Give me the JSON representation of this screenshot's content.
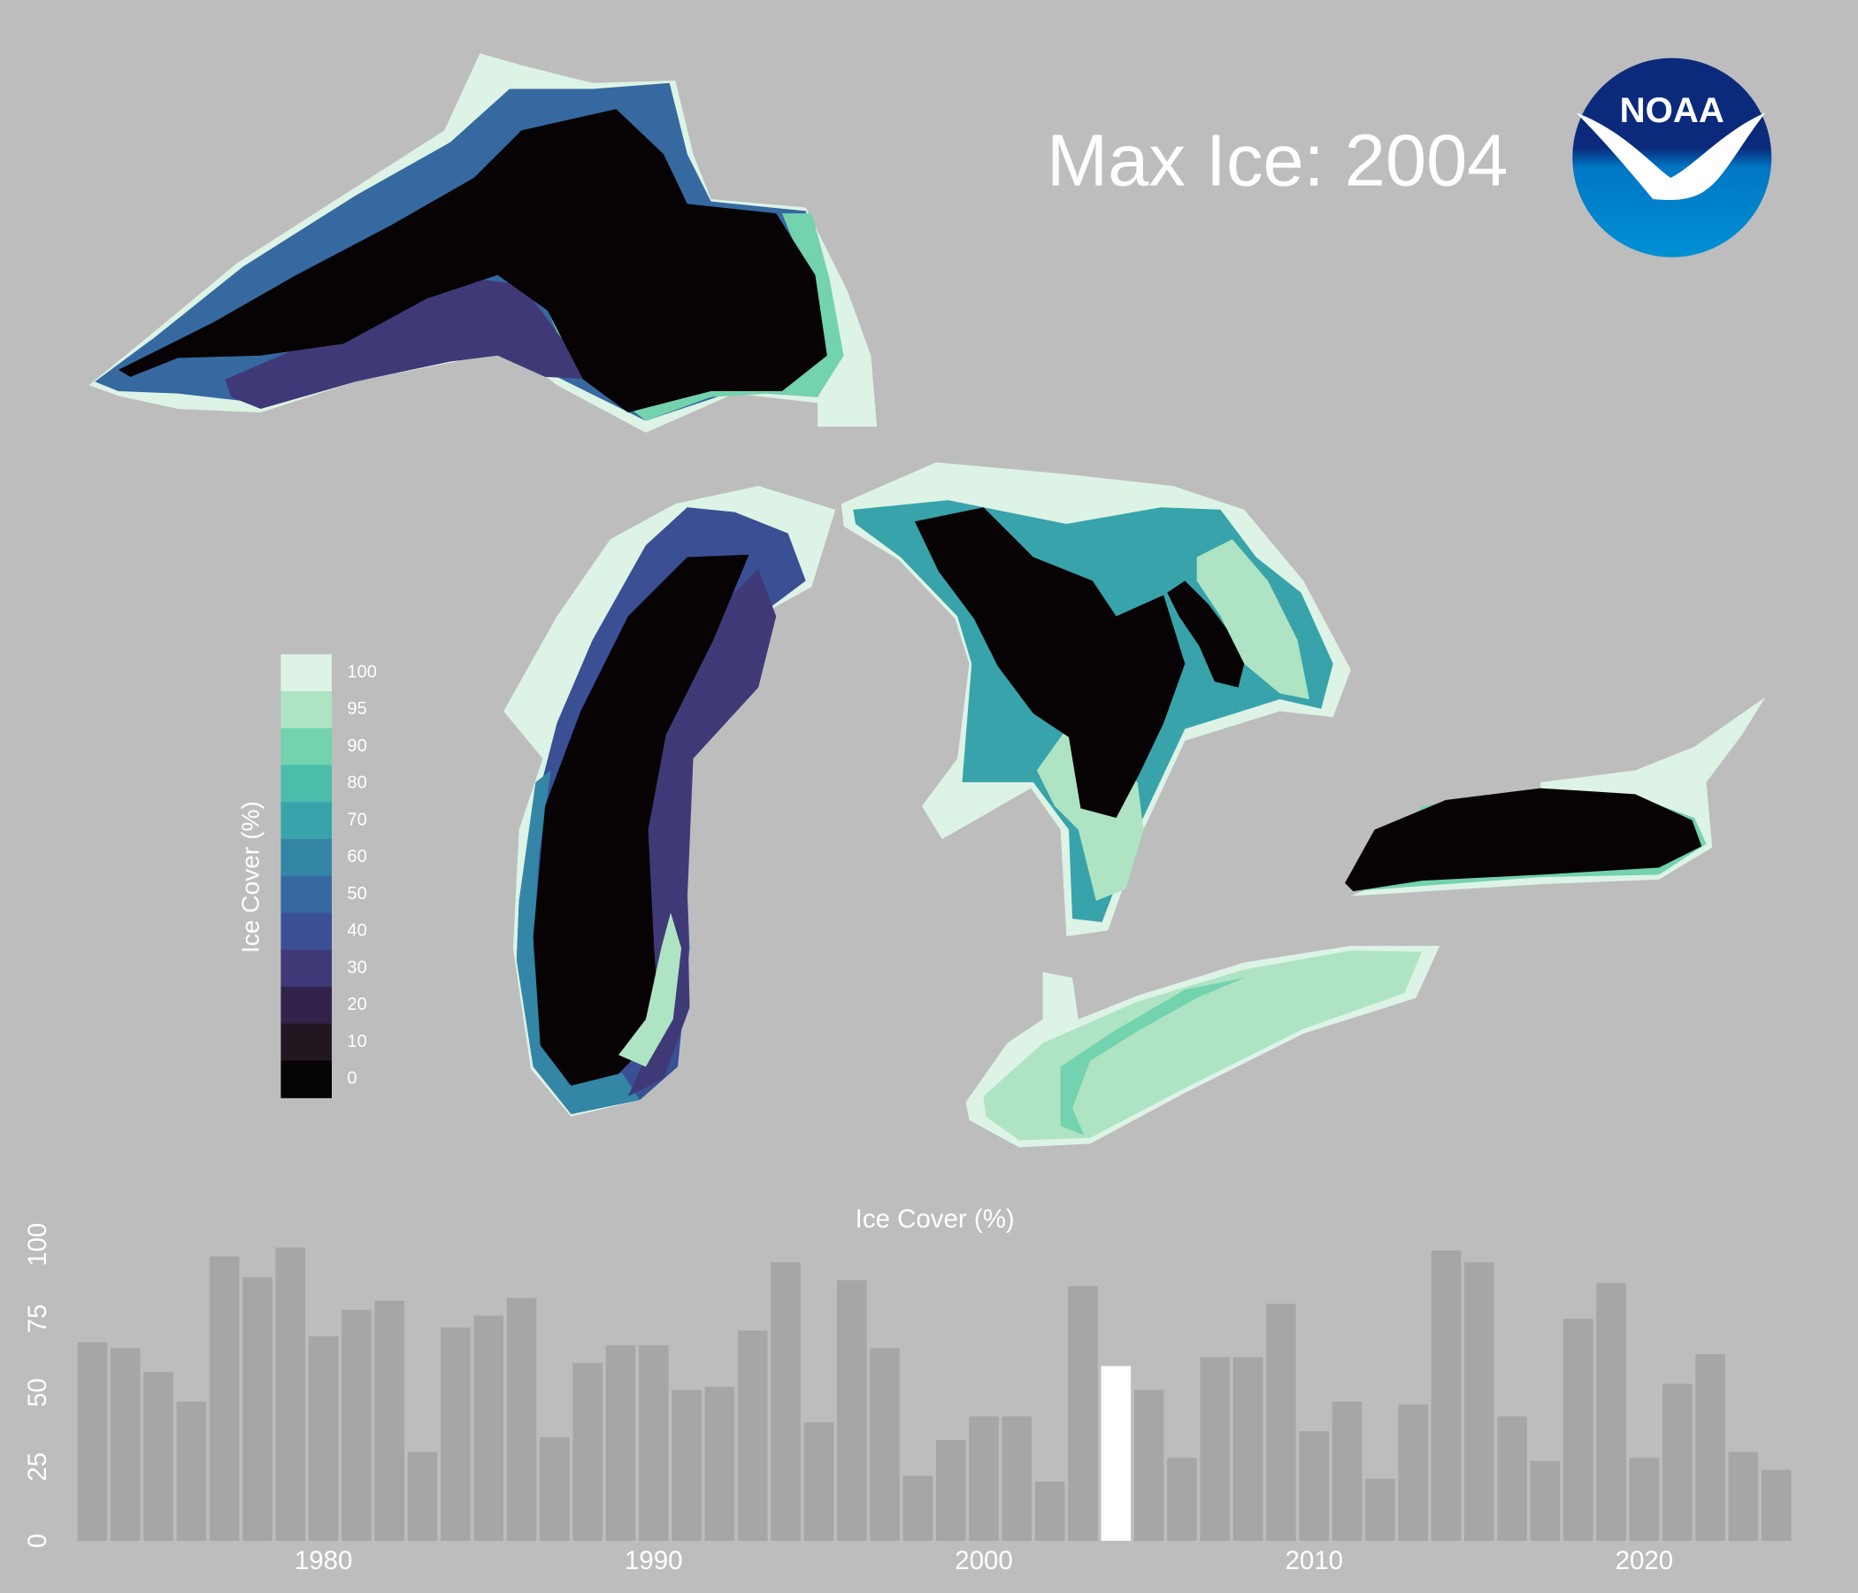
{
  "title": "Max Ice: 2004",
  "logo_text": "NOAA",
  "legend": {
    "title": "Ice Cover (%)",
    "levels": [
      100,
      95,
      90,
      80,
      70,
      60,
      50,
      40,
      30,
      20,
      10,
      0
    ],
    "colors": [
      "#ddf3e6",
      "#aee4c3",
      "#72d3ae",
      "#4bbdab",
      "#38a3aa",
      "#3386a6",
      "#3669a0",
      "#3b4f95",
      "#3f3a77",
      "#33234a",
      "#221621",
      "#060304"
    ]
  },
  "chart_data": {
    "type": "bar",
    "title": "Ice Cover (%)",
    "x": [
      1973,
      1974,
      1975,
      1976,
      1977,
      1978,
      1979,
      1980,
      1981,
      1982,
      1983,
      1984,
      1985,
      1986,
      1987,
      1988,
      1989,
      1990,
      1991,
      1992,
      1993,
      1994,
      1995,
      1996,
      1997,
      1998,
      1999,
      2000,
      2001,
      2002,
      2003,
      2004,
      2005,
      2006,
      2007,
      2008,
      2009,
      2010,
      2011,
      2012,
      2013,
      2014,
      2015,
      2016,
      2017,
      2018,
      2019,
      2020,
      2021,
      2022,
      2023,
      2024
    ],
    "values": [
      67,
      65,
      57,
      47,
      96,
      89,
      99,
      69,
      78,
      81,
      30,
      72,
      76,
      82,
      35,
      60,
      66,
      66,
      51,
      52,
      71,
      94,
      40,
      88,
      65,
      22,
      34,
      42,
      42,
      20,
      86,
      59,
      51,
      28,
      62,
      62,
      80,
      37,
      47,
      21,
      46,
      98,
      94,
      42,
      27,
      75,
      87,
      28,
      53,
      63,
      30,
      24
    ],
    "color": "#a6a6a6",
    "highlight_x": 2004,
    "highlight_color": "#ffffff",
    "xlim": [
      1972.5,
      2024.5
    ],
    "xticks": [
      1980,
      1990,
      2000,
      2010,
      2020
    ],
    "ylim": [
      0,
      100
    ],
    "yticks": [
      0,
      25,
      50,
      75,
      100
    ]
  }
}
